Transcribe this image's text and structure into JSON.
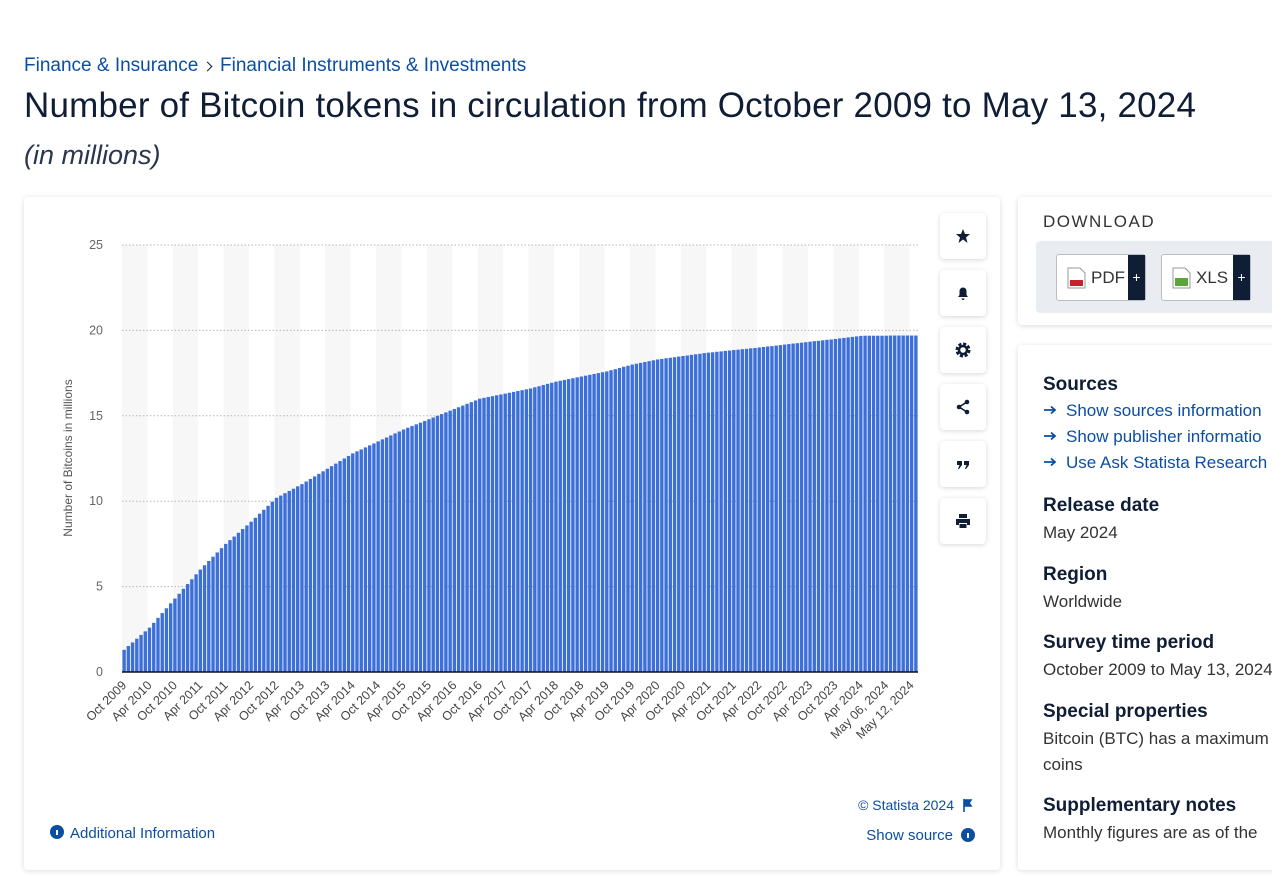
{
  "breadcrumb": [
    "Finance & Insurance",
    "Financial Instruments & Investments"
  ],
  "header": {
    "title": "Number of Bitcoin tokens in circulation from October 2009 to May 13, 2024",
    "subtitle": "(in millions)"
  },
  "chart_data": {
    "type": "bar",
    "y_label": "Number of Bitcoins in millions",
    "color": "#3d6fd8",
    "categories": [
      "Oct 2009",
      null,
      null,
      null,
      null,
      null,
      "Apr 2010",
      null,
      null,
      null,
      null,
      null,
      "Oct 2010",
      null,
      null,
      null,
      null,
      null,
      "Apr 2011",
      null,
      null,
      null,
      null,
      null,
      "Oct 2011",
      null,
      null,
      null,
      null,
      null,
      "Apr 2012",
      null,
      null,
      null,
      null,
      null,
      "Oct 2012",
      null,
      null,
      null,
      null,
      null,
      "Apr 2013",
      null,
      null,
      null,
      null,
      null,
      "Oct 2013",
      null,
      null,
      null,
      null,
      null,
      "Apr 2014",
      null,
      null,
      null,
      null,
      null,
      "Oct 2014",
      null,
      null,
      null,
      null,
      null,
      "Apr 2015",
      null,
      null,
      null,
      null,
      null,
      "Oct 2015",
      null,
      null,
      null,
      null,
      null,
      "Apr 2016",
      null,
      null,
      null,
      null,
      null,
      "Oct 2016",
      null,
      null,
      null,
      null,
      null,
      "Apr 2017",
      null,
      null,
      null,
      null,
      null,
      "Oct 2017",
      null,
      null,
      null,
      null,
      null,
      "Apr 2018",
      null,
      null,
      null,
      null,
      null,
      "Oct 2018",
      null,
      null,
      null,
      null,
      null,
      "Apr 2019",
      null,
      null,
      null,
      null,
      null,
      "Oct 2019",
      null,
      null,
      null,
      null,
      null,
      "Apr 2020",
      null,
      null,
      null,
      null,
      null,
      "Oct 2020",
      null,
      null,
      null,
      null,
      null,
      "Apr 2021",
      null,
      null,
      null,
      null,
      null,
      "Oct 2021",
      null,
      null,
      null,
      null,
      null,
      "Apr 2022",
      null,
      null,
      null,
      null,
      null,
      "Oct 2022",
      null,
      null,
      null,
      null,
      null,
      "Apr 2023",
      null,
      null,
      null,
      null,
      null,
      "Oct 2023",
      null,
      null,
      null,
      null,
      null,
      "Apr 2024",
      null,
      null,
      null,
      null,
      null,
      "May 06, 2024",
      null,
      null,
      null,
      null,
      null,
      "May 12, 2024",
      null
    ],
    "values": [
      1.3,
      1.52,
      1.73,
      1.95,
      2.17,
      2.38,
      2.6,
      2.88,
      3.17,
      3.45,
      3.73,
      4.02,
      4.3,
      4.58,
      4.87,
      5.15,
      5.43,
      5.72,
      6.0,
      6.25,
      6.5,
      6.75,
      7.0,
      7.25,
      7.5,
      7.72,
      7.93,
      8.15,
      8.37,
      8.58,
      8.8,
      9.03,
      9.27,
      9.5,
      9.73,
      9.97,
      10.2,
      10.33,
      10.47,
      10.6,
      10.73,
      10.87,
      11.0,
      11.15,
      11.3,
      11.45,
      11.6,
      11.75,
      11.9,
      12.05,
      12.2,
      12.35,
      12.5,
      12.65,
      12.8,
      12.92,
      13.03,
      13.15,
      13.27,
      13.38,
      13.5,
      13.62,
      13.73,
      13.85,
      13.97,
      14.08,
      14.2,
      14.3,
      14.4,
      14.5,
      14.6,
      14.7,
      14.8,
      14.9,
      15.0,
      15.1,
      15.2,
      15.3,
      15.4,
      15.5,
      15.6,
      15.7,
      15.8,
      15.9,
      16.0,
      16.05,
      16.1,
      16.15,
      16.2,
      16.25,
      16.3,
      16.35,
      16.4,
      16.45,
      16.5,
      16.55,
      16.6,
      16.67,
      16.73,
      16.8,
      16.87,
      16.93,
      17.0,
      17.05,
      17.1,
      17.15,
      17.2,
      17.25,
      17.3,
      17.35,
      17.4,
      17.45,
      17.5,
      17.55,
      17.6,
      17.67,
      17.73,
      17.8,
      17.87,
      17.93,
      18.0,
      18.05,
      18.1,
      18.15,
      18.2,
      18.25,
      18.3,
      18.33,
      18.37,
      18.4,
      18.43,
      18.47,
      18.5,
      18.53,
      18.57,
      18.6,
      18.63,
      18.67,
      18.7,
      18.72,
      18.75,
      18.77,
      18.8,
      18.82,
      18.85,
      18.87,
      18.9,
      18.92,
      18.95,
      18.97,
      19.0,
      19.03,
      19.06,
      19.08,
      19.11,
      19.14,
      19.17,
      19.2,
      19.23,
      19.25,
      19.28,
      19.31,
      19.34,
      19.37,
      19.39,
      19.42,
      19.45,
      19.47,
      19.5,
      19.53,
      19.56,
      19.59,
      19.62,
      19.65,
      19.68,
      19.69,
      19.69,
      19.69,
      19.69,
      19.69,
      19.69,
      19.7,
      19.7,
      19.7,
      19.7,
      19.7,
      19.7,
      19.7
    ],
    "ylim": [
      0,
      25
    ],
    "yticks": [
      0,
      5,
      10,
      15,
      20,
      25
    ],
    "grid": true
  },
  "chart_footer": {
    "credit": "© Statista 2024",
    "show_source": "Show source",
    "additional_info": "Additional Information"
  },
  "sidebar": {
    "download": "DOWNLOAD",
    "formats": [
      {
        "label": "PDF",
        "action": "+"
      },
      {
        "label": "XLS",
        "action": "+"
      }
    ],
    "sources": {
      "title": "Sources",
      "links": [
        "Show sources information",
        "Show publisher informatio",
        "Use Ask Statista Research S"
      ]
    },
    "details": [
      {
        "title": "Release date",
        "lines": [
          "May 2024"
        ]
      },
      {
        "title": "Region",
        "lines": [
          "Worldwide"
        ]
      },
      {
        "title": "Survey time period",
        "lines": [
          "October 2009 to May 13, 2024"
        ]
      },
      {
        "title": "Special properties",
        "lines": [
          "Bitcoin (BTC) has a maximum",
          "coins"
        ]
      },
      {
        "title": "Supplementary notes",
        "lines": [
          "Monthly figures are as of the"
        ]
      }
    ]
  }
}
